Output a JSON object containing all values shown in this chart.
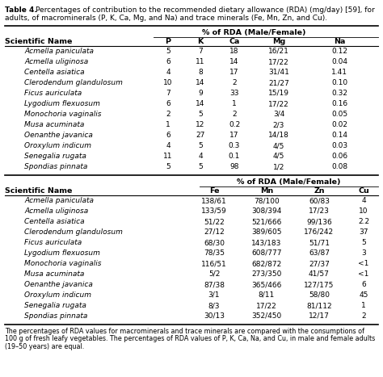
{
  "title_bold": "Table 4.",
  "title_rest": " Percentages of contribution to the recommended dietary allowance (RDA) (mg/day) [59], for adults, of macrominerals (P, K, Ca, Mg, and Na) and trace minerals (Fe, Mn, Zn, and Cu).",
  "section1_header": "% of RDA (Male/Female)",
  "section1_data": [
    [
      "Acmella paniculata",
      "5",
      "7",
      "18",
      "16/21",
      "0.12"
    ],
    [
      "Acmella uliginosa",
      "6",
      "11",
      "14",
      "17/22",
      "0.04"
    ],
    [
      "Centella asiatica",
      "4",
      "8",
      "17",
      "31/41",
      "1.41"
    ],
    [
      "Clerodendum glandulosum",
      "10",
      "14",
      "2",
      "21/27",
      "0.10"
    ],
    [
      "Ficus auriculata",
      "7",
      "9",
      "33",
      "15/19",
      "0.32"
    ],
    [
      "Lygodium flexuosum",
      "6",
      "14",
      "1",
      "17/22",
      "0.16"
    ],
    [
      "Monochoria vaginalis",
      "2",
      "5",
      "2",
      "3/4",
      "0.05"
    ],
    [
      "Musa acuminata",
      "1",
      "12",
      "0.2",
      "2/3",
      "0.02"
    ],
    [
      "Oenanthe javanica",
      "6",
      "27",
      "17",
      "14/18",
      "0.14"
    ],
    [
      "Oroxylum indicum",
      "4",
      "5",
      "0.3",
      "4/5",
      "0.03"
    ],
    [
      "Senegalia rugata",
      "11",
      "4",
      "0.1",
      "4/5",
      "0.06"
    ],
    [
      "Spondias pinnata",
      "5",
      "5",
      "98",
      "1/2",
      "0.08"
    ]
  ],
  "section2_header": "% of RDA (Male/Female)",
  "section2_data": [
    [
      "Acmella paniculata",
      "138/61",
      "78/100",
      "60/83",
      "4"
    ],
    [
      "Acmella uliginosa",
      "133/59",
      "308/394",
      "17/23",
      "10"
    ],
    [
      "Centella asiatica",
      "51/22",
      "521/666",
      "99/136",
      "2.2"
    ],
    [
      "Clerodendum glandulosum",
      "27/12",
      "389/605",
      "176/242",
      "37"
    ],
    [
      "Ficus auriculata",
      "68/30",
      "143/183",
      "51/71",
      "5"
    ],
    [
      "Lygodium flexuosum",
      "78/35",
      "608/777",
      "63/87",
      "3"
    ],
    [
      "Monochoria vaginalis",
      "116/51",
      "682/872",
      "27/37",
      "<1"
    ],
    [
      "Musa acuminata",
      "5/2",
      "273/350",
      "41/57",
      "<1"
    ],
    [
      "Oenanthe javanica",
      "87/38",
      "365/466",
      "127/175",
      "6"
    ],
    [
      "Oroxylum indicum",
      "3/1",
      "8/11",
      "58/80",
      "45"
    ],
    [
      "Senegalia rugata",
      "8/3",
      "17/22",
      "81/112",
      "1"
    ],
    [
      "Spondias pinnata",
      "30/13",
      "352/450",
      "12/17",
      "2"
    ]
  ],
  "footnote": "The percentages of RDA values for macrominerals and trace minerals are compared with the consumptions of 100 g of fresh leafy vegetables. The percentages of RDA values of P, K, Ca, Na, and Cu, in male and female adults (19–50 years) are equal.",
  "bg_color": "#ffffff",
  "text_color": "#000000"
}
